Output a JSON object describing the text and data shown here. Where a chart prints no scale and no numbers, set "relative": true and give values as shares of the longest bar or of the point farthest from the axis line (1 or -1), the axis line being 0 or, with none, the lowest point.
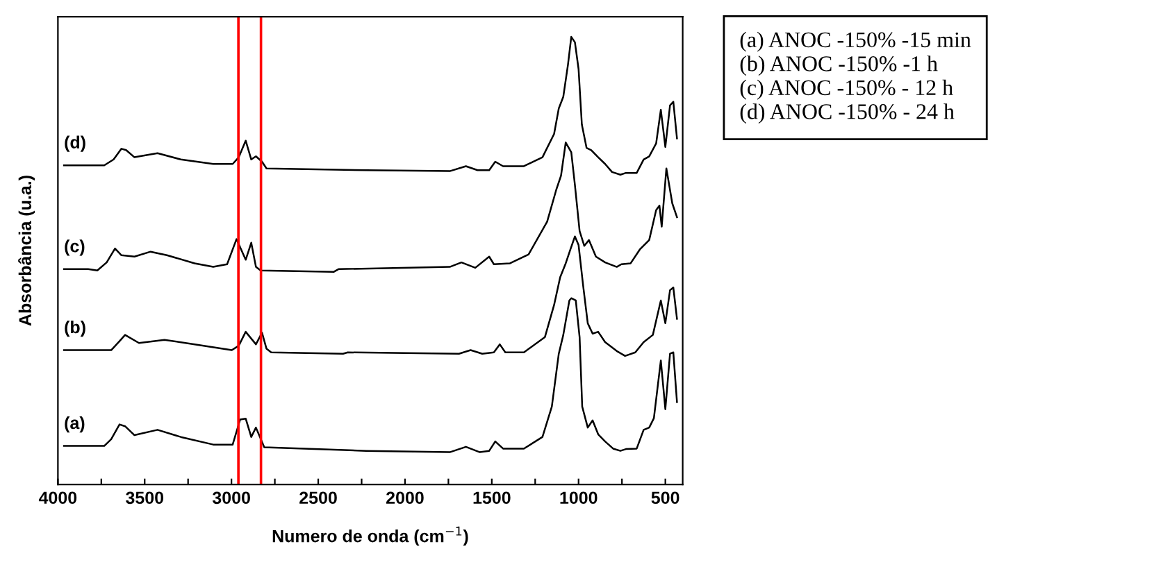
{
  "chart_data": {
    "type": "line",
    "relative": true,
    "xlabel": "Numero de onda (cm$^{−1}$)",
    "ylabel": "Absorbância (u.a.)",
    "xlim": [
      4000,
      400
    ],
    "xticks": [
      4000,
      {
        "value": 3750,
        "label": null
      },
      3500,
      {
        "value": 3250,
        "label": null
      },
      3000,
      {
        "value": 2750,
        "label": null
      },
      2500,
      {
        "value": 2250,
        "label": null
      },
      2000,
      {
        "value": 1750,
        "label": null
      },
      1500,
      {
        "value": 1250,
        "label": null
      },
      1000,
      {
        "value": 750,
        "label": null
      },
      500
    ],
    "tick_labels": "x",
    "grid": false,
    "ref_lines": [
      {
        "axis": "x",
        "value": 2960,
        "color": "#ff0000"
      },
      {
        "axis": "x",
        "value": 2830,
        "color": "#ff0000"
      }
    ],
    "annotations": [
      "(a) ANOC -150% -15 min",
      "(b) ANOC -150% -1 h",
      "(c) ANOC -150% - 12 h",
      "(d) ANOC -150% - 24 h"
    ],
    "series": [
      {
        "name": "(d)",
        "color": "#000000",
        "x": [
          3965,
          3733,
          3679,
          3634,
          3607,
          3559,
          3426,
          3292,
          3105,
          2993,
          2958,
          2918,
          2886,
          2859,
          2824,
          2798,
          2223,
          1742,
          1649,
          1582,
          1515,
          1480,
          1435,
          1315,
          1208,
          1141,
          1114,
          1088,
          1061,
          1042,
          1021,
          1000,
          981,
          954,
          927,
          887,
          847,
          807,
          759,
          727,
          665,
          625,
          593,
          553,
          526,
          500,
          473,
          454,
          433
        ],
        "values": [
          0.713,
          0.713,
          0.726,
          0.75,
          0.747,
          0.731,
          0.74,
          0.726,
          0.716,
          0.716,
          0.731,
          0.768,
          0.726,
          0.733,
          0.721,
          0.706,
          0.702,
          0.7,
          0.711,
          0.702,
          0.702,
          0.721,
          0.711,
          0.711,
          0.731,
          0.783,
          0.84,
          0.866,
          0.938,
          1.0,
          0.988,
          0.928,
          0.804,
          0.752,
          0.747,
          0.731,
          0.716,
          0.698,
          0.692,
          0.696,
          0.696,
          0.726,
          0.733,
          0.762,
          0.837,
          0.754,
          0.847,
          0.855,
          0.773
        ]
      },
      {
        "name": "(c)",
        "color": "#000000",
        "x": [
          3965,
          3826,
          3773,
          3719,
          3671,
          3634,
          3559,
          3466,
          3372,
          3212,
          3105,
          3025,
          2971,
          2918,
          2886,
          2859,
          2832,
          2410,
          2383,
          1742,
          1675,
          1595,
          1515,
          1488,
          1395,
          1288,
          1181,
          1128,
          1101,
          1074,
          1042,
          1021,
          994,
          967,
          940,
          900,
          847,
          780,
          753,
          700,
          647,
          593,
          553,
          534,
          521,
          494,
          460,
          433
        ],
        "values": [
          0.481,
          0.481,
          0.478,
          0.496,
          0.527,
          0.512,
          0.509,
          0.52,
          0.512,
          0.494,
          0.486,
          0.492,
          0.548,
          0.502,
          0.54,
          0.486,
          0.478,
          0.475,
          0.481,
          0.486,
          0.496,
          0.484,
          0.509,
          0.492,
          0.494,
          0.514,
          0.587,
          0.659,
          0.69,
          0.764,
          0.742,
          0.669,
          0.566,
          0.533,
          0.546,
          0.509,
          0.496,
          0.486,
          0.492,
          0.494,
          0.525,
          0.546,
          0.613,
          0.623,
          0.576,
          0.706,
          0.628,
          0.597
        ]
      },
      {
        "name": "(b)",
        "color": "#000000",
        "x": [
          3965,
          3693,
          3645,
          3613,
          3533,
          3386,
          3212,
          2998,
          2958,
          2918,
          2859,
          2824,
          2798,
          2771,
          2357,
          2330,
          1689,
          1622,
          1555,
          1488,
          1454,
          1422,
          1315,
          1194,
          1141,
          1106,
          1074,
          1047,
          1021,
          1000,
          973,
          947,
          919,
          887,
          847,
          780,
          732,
          673,
          625,
          572,
          526,
          500,
          473,
          454,
          433
        ],
        "values": [
          0.3,
          0.3,
          0.32,
          0.334,
          0.316,
          0.323,
          0.313,
          0.3,
          0.31,
          0.341,
          0.313,
          0.339,
          0.303,
          0.295,
          0.292,
          0.295,
          0.292,
          0.3,
          0.292,
          0.295,
          0.313,
          0.295,
          0.295,
          0.329,
          0.401,
          0.463,
          0.494,
          0.525,
          0.554,
          0.535,
          0.442,
          0.36,
          0.337,
          0.341,
          0.318,
          0.298,
          0.287,
          0.295,
          0.318,
          0.334,
          0.411,
          0.36,
          0.434,
          0.44,
          0.37
        ]
      },
      {
        "name": "(a)",
        "color": "#000000",
        "x": [
          3965,
          3733,
          3693,
          3645,
          3613,
          3559,
          3426,
          3292,
          3105,
          2993,
          2950,
          2918,
          2886,
          2859,
          2811,
          2223,
          1742,
          1649,
          1569,
          1515,
          1480,
          1435,
          1315,
          1208,
          1154,
          1114,
          1088,
          1053,
          1042,
          1016,
          994,
          979,
          947,
          919,
          887,
          847,
          801,
          759,
          727,
          665,
          625,
          593,
          566,
          526,
          500,
          473,
          454,
          433
        ],
        "values": [
          0.086,
          0.086,
          0.101,
          0.134,
          0.13,
          0.11,
          0.122,
          0.106,
          0.089,
          0.089,
          0.145,
          0.147,
          0.106,
          0.127,
          0.083,
          0.075,
          0.072,
          0.084,
          0.072,
          0.075,
          0.096,
          0.08,
          0.08,
          0.106,
          0.174,
          0.292,
          0.334,
          0.411,
          0.416,
          0.411,
          0.329,
          0.174,
          0.127,
          0.143,
          0.112,
          0.096,
          0.08,
          0.075,
          0.079,
          0.08,
          0.122,
          0.127,
          0.148,
          0.277,
          0.168,
          0.292,
          0.295,
          0.184
        ]
      }
    ]
  }
}
